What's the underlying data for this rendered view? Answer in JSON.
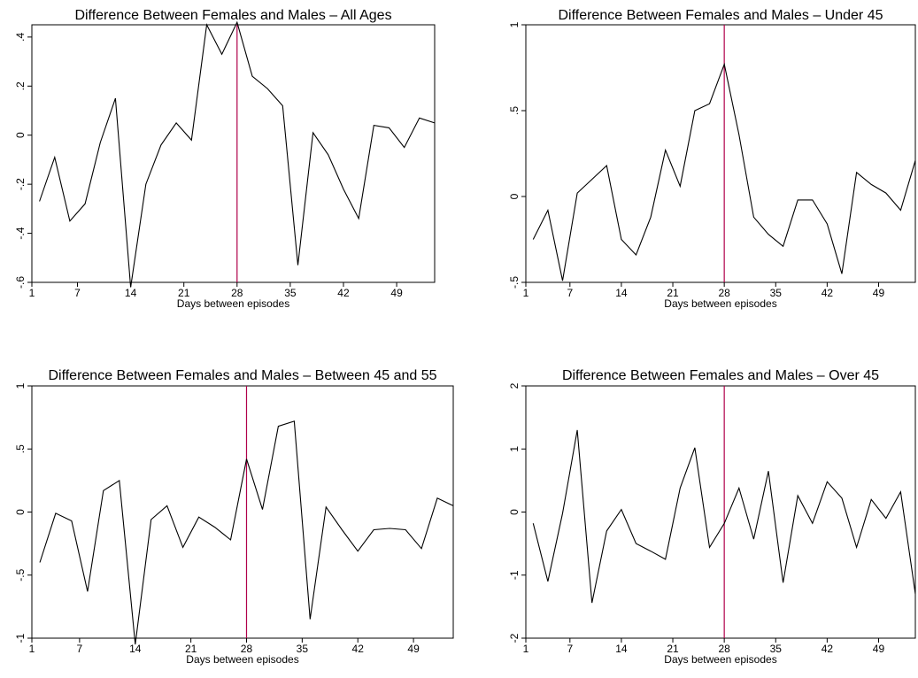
{
  "chart_data": [
    {
      "type": "line",
      "title": "Difference Between Females and Males – All Ages",
      "xlabel": "Days between episodes",
      "ylabel": "",
      "xlim": [
        1,
        54
      ],
      "ylim": [
        -0.6,
        0.45
      ],
      "x_ticks": [
        1,
        7,
        14,
        21,
        28,
        35,
        42,
        49
      ],
      "y_ticks": [
        {
          "v": -0.6,
          "label": "-.6"
        },
        {
          "v": -0.4,
          "label": "-.4"
        },
        {
          "v": -0.2,
          "label": "-.2"
        },
        {
          "v": 0,
          "label": "0"
        },
        {
          "v": 0.2,
          "label": ".2"
        },
        {
          "v": 0.4,
          "label": ".4"
        }
      ],
      "reference_line_x": 28,
      "line_color": "#000000",
      "reference_color": "#b0004a",
      "x": [
        2,
        4,
        6,
        8,
        10,
        12,
        14,
        16,
        18,
        20,
        22,
        24,
        26,
        28,
        30,
        32,
        34,
        36,
        38,
        40,
        42,
        44,
        46,
        48,
        50,
        52,
        54
      ],
      "values": [
        -0.27,
        -0.09,
        -0.35,
        -0.28,
        -0.03,
        0.15,
        -0.62,
        -0.2,
        -0.04,
        0.05,
        -0.02,
        0.45,
        0.33,
        0.46,
        0.24,
        0.19,
        0.12,
        -0.53,
        0.01,
        -0.08,
        -0.22,
        -0.34,
        0.04,
        0.03,
        -0.05,
        0.07,
        0.05
      ]
    },
    {
      "type": "line",
      "title": "Difference Between Females and Males – Under 45",
      "xlabel": "Days between episodes",
      "ylabel": "",
      "xlim": [
        1,
        54
      ],
      "ylim": [
        -0.5,
        1
      ],
      "x_ticks": [
        1,
        7,
        14,
        21,
        28,
        35,
        42,
        49
      ],
      "y_ticks": [
        {
          "v": -0.5,
          "label": "-.5"
        },
        {
          "v": 0,
          "label": "0"
        },
        {
          "v": 0.5,
          "label": ".5"
        },
        {
          "v": 1,
          "label": "1"
        }
      ],
      "reference_line_x": 28,
      "line_color": "#000000",
      "reference_color": "#b0004a",
      "x": [
        2,
        4,
        6,
        8,
        10,
        12,
        14,
        16,
        18,
        20,
        22,
        24,
        26,
        28,
        30,
        32,
        34,
        36,
        38,
        40,
        42,
        44,
        46,
        48,
        50,
        52,
        54
      ],
      "values": [
        -0.25,
        -0.08,
        -0.49,
        0.02,
        0.1,
        0.18,
        -0.25,
        -0.34,
        -0.12,
        0.27,
        0.06,
        0.5,
        0.54,
        0.77,
        0.36,
        -0.12,
        -0.22,
        -0.29,
        -0.02,
        -0.02,
        -0.16,
        -0.45,
        0.14,
        0.07,
        0.02,
        -0.08,
        0.21
      ]
    },
    {
      "type": "line",
      "title": "Difference Between Females and Males – Between 45 and 55",
      "xlabel": "Days between episodes",
      "ylabel": "",
      "xlim": [
        1,
        54
      ],
      "ylim": [
        -1,
        1
      ],
      "x_ticks": [
        1,
        7,
        14,
        21,
        28,
        35,
        42,
        49
      ],
      "y_ticks": [
        {
          "v": -1,
          "label": "-1"
        },
        {
          "v": -0.5,
          "label": "-.5"
        },
        {
          "v": 0,
          "label": "0"
        },
        {
          "v": 0.5,
          "label": ".5"
        },
        {
          "v": 1,
          "label": "1"
        }
      ],
      "reference_line_x": 28,
      "line_color": "#000000",
      "reference_color": "#b0004a",
      "x": [
        2,
        4,
        6,
        8,
        10,
        12,
        14,
        16,
        18,
        20,
        22,
        24,
        26,
        28,
        30,
        32,
        34,
        36,
        38,
        40,
        42,
        44,
        46,
        48,
        50,
        52,
        54
      ],
      "values": [
        -0.4,
        -0.01,
        -0.07,
        -0.63,
        0.17,
        0.25,
        -1.05,
        -0.06,
        0.05,
        -0.28,
        -0.04,
        -0.12,
        -0.22,
        0.42,
        0.02,
        0.68,
        0.72,
        -0.85,
        0.04,
        -0.14,
        -0.31,
        -0.14,
        -0.13,
        -0.14,
        -0.29,
        0.11,
        0.05
      ]
    },
    {
      "type": "line",
      "title": "Difference Between Females and Males – Over 45",
      "xlabel": "Days between episodes",
      "ylabel": "",
      "xlim": [
        1,
        54
      ],
      "ylim": [
        -2,
        2
      ],
      "x_ticks": [
        1,
        7,
        14,
        21,
        28,
        35,
        42,
        49
      ],
      "y_ticks": [
        {
          "v": -2,
          "label": "-2"
        },
        {
          "v": -1,
          "label": "-1"
        },
        {
          "v": 0,
          "label": "0"
        },
        {
          "v": 1,
          "label": "1"
        },
        {
          "v": 2,
          "label": "2"
        }
      ],
      "reference_line_x": 28,
      "line_color": "#000000",
      "reference_color": "#b0004a",
      "x": [
        2,
        4,
        6,
        8,
        10,
        12,
        14,
        16,
        18,
        20,
        22,
        24,
        26,
        28,
        30,
        32,
        34,
        36,
        38,
        40,
        42,
        44,
        46,
        48,
        50,
        52,
        54
      ],
      "values": [
        -0.18,
        -1.1,
        -0.02,
        1.3,
        -1.44,
        -0.3,
        0.04,
        -0.5,
        -0.62,
        -0.75,
        0.38,
        1.02,
        -0.56,
        -0.18,
        0.38,
        -0.43,
        0.65,
        -1.12,
        0.26,
        -0.18,
        0.48,
        0.22,
        -0.56,
        0.2,
        -0.1,
        0.32,
        -1.3
      ]
    }
  ]
}
